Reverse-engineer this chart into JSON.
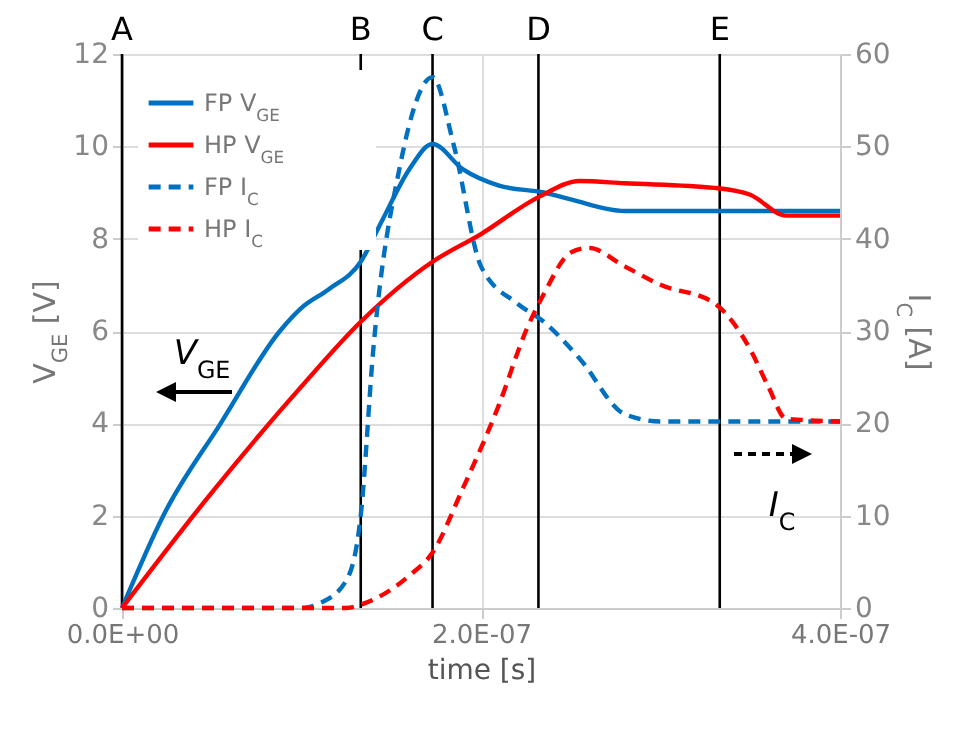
{
  "chart_data": {
    "type": "line",
    "xlabel": "time [s]",
    "ylabel": "V$_{GE}$ [V]",
    "y2label": "I$_{C}$ [A]",
    "xlim": [
      0,
      4e-07
    ],
    "xticks": [
      {
        "value": 0,
        "label": "0.0E+00"
      },
      {
        "value": 2e-07,
        "label": "2.0E-07"
      },
      {
        "value": 4e-07,
        "label": "4.0E-07"
      }
    ],
    "ylim": [
      0,
      12
    ],
    "yticks": [
      0,
      2,
      4,
      6,
      8,
      10,
      12
    ],
    "y2lim": [
      0,
      60
    ],
    "y2ticks": [
      0,
      10,
      20,
      30,
      40,
      50,
      60
    ],
    "grid": true,
    "legend": "top left",
    "series": [
      {
        "name": "FP V$_{GE}$",
        "color": "#0070c0",
        "line_style": "solid",
        "x": [
          0,
          2.3e-08,
          5.5e-08,
          8.8e-08,
          1e-07,
          1.15e-07,
          1.33e-07,
          1.45e-07,
          1.6e-07,
          1.73e-07,
          1.9e-07,
          2.1e-07,
          2.35e-07,
          2.5e-07,
          2.8e-07,
          3.3e-07,
          4e-07
        ],
        "values": [
          0,
          2,
          4,
          6,
          6.5,
          6.9,
          7.5,
          8.4,
          9.5,
          10.05,
          9.5,
          9.15,
          9.0,
          8.85,
          8.6,
          8.6,
          8.6
        ]
      },
      {
        "name": "HP V$_{GE}$",
        "color": "#ff0000",
        "line_style": "solid",
        "x": [
          0,
          5e-08,
          1e-07,
          1.33e-07,
          1.73e-07,
          2e-07,
          2.32e-07,
          2.55e-07,
          2.8e-07,
          3.3e-07,
          3.5e-07,
          3.7e-07,
          4e-07
        ],
        "values": [
          0,
          2.5,
          4.8,
          6.2,
          7.5,
          8.1,
          8.9,
          9.25,
          9.2,
          9.1,
          8.95,
          8.5,
          8.5
        ]
      },
      {
        "name": "FP I$_{C}$",
        "color": "#0070c0",
        "line_style": "dashed",
        "axis": "y2",
        "x": [
          0,
          1e-07,
          1.1e-07,
          1.25e-07,
          1.33e-07,
          1.4e-07,
          1.55e-07,
          1.73e-07,
          1.85e-07,
          2e-07,
          2.2e-07,
          2.35e-07,
          2.55e-07,
          2.8e-07,
          3e-07,
          4e-07
        ],
        "values": [
          0,
          0,
          0.5,
          3,
          10,
          28,
          48,
          57.5,
          50,
          37,
          33,
          31,
          27,
          21,
          20.2,
          20.2
        ]
      },
      {
        "name": "HP I$_{C}$",
        "color": "#ff0000",
        "line_style": "dashed",
        "axis": "y2",
        "x": [
          0,
          1.25e-07,
          1.35e-07,
          1.6e-07,
          1.73e-07,
          1.9e-07,
          2.1e-07,
          2.25e-07,
          2.35e-07,
          2.5e-07,
          2.6e-07,
          2.8e-07,
          3e-07,
          3.3e-07,
          3.5e-07,
          3.6e-07,
          3.7e-07,
          4e-07
        ],
        "values": [
          0,
          0,
          0.5,
          3.5,
          6,
          13,
          22,
          30,
          34,
          38.5,
          39,
          37,
          35,
          33,
          28,
          24,
          20.5,
          20.2
        ]
      }
    ],
    "ref_lines": [
      {
        "axis": "x",
        "value": 0,
        "label": "A",
        "color": "#000000"
      },
      {
        "axis": "x",
        "value": 1.33e-07,
        "label": "B",
        "color": "#000000"
      },
      {
        "axis": "x",
        "value": 1.73e-07,
        "label": "C",
        "color": "#000000"
      },
      {
        "axis": "x",
        "value": 2.32e-07,
        "label": "D",
        "color": "#000000"
      },
      {
        "axis": "x",
        "value": 3.33e-07,
        "label": "E",
        "color": "#000000"
      }
    ],
    "annotations": [
      "V$_{GE}$",
      "I$_{C}$"
    ]
  }
}
